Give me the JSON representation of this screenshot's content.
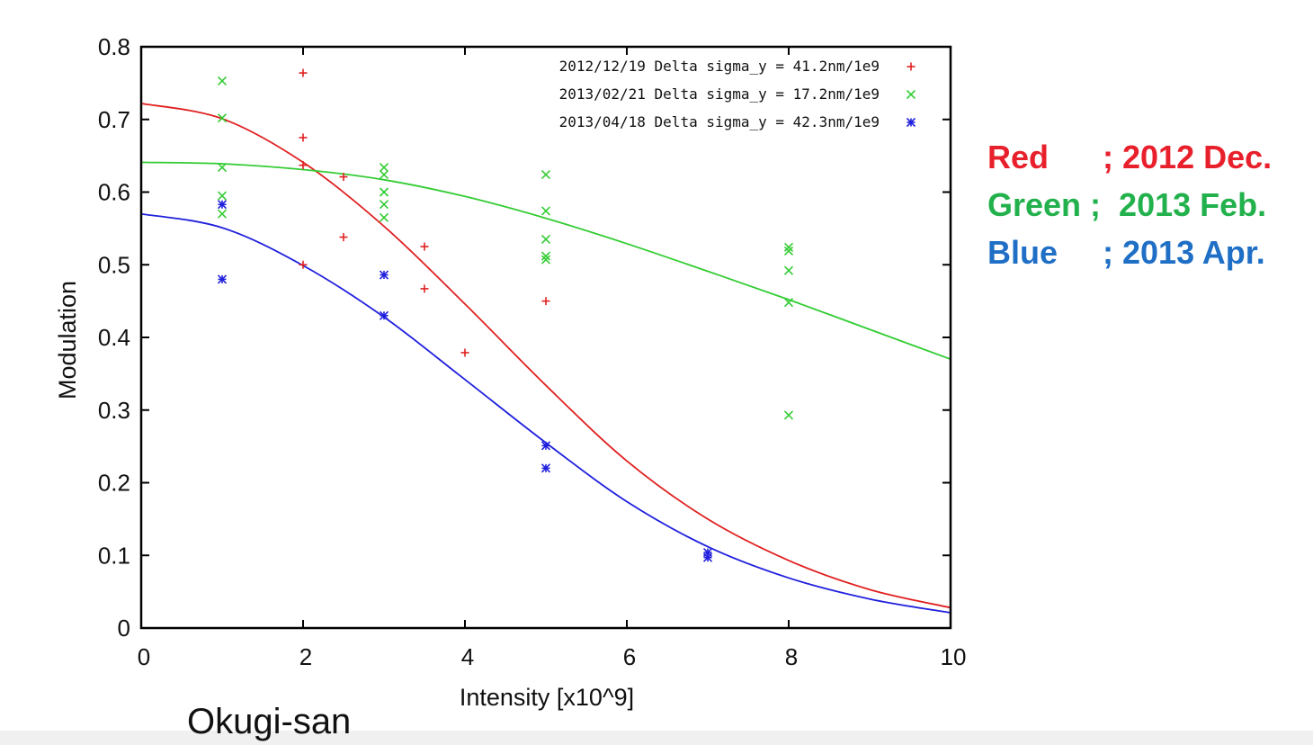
{
  "chart_data": {
    "type": "scatter",
    "title": "",
    "xlabel": "Intensity [x10^9]",
    "ylabel": "Modulation",
    "xlim": [
      0,
      10
    ],
    "ylim": [
      0,
      0.8
    ],
    "xticks": [
      "0",
      "2",
      "4",
      "6",
      "8",
      "10"
    ],
    "yticks": [
      "0",
      "0.1",
      "0.2",
      "0.3",
      "0.4",
      "0.5",
      "0.6",
      "0.7",
      "0.8"
    ],
    "grid": false,
    "legend_position": "top-right",
    "series": [
      {
        "name": "2012/12/19 Delta sigma_y = 41.2nm/1e9",
        "marker": "+",
        "color": "#e02020",
        "points": [
          [
            2,
            0.764
          ],
          [
            2,
            0.675
          ],
          [
            2,
            0.637
          ],
          [
            2,
            0.5
          ],
          [
            2.5,
            0.621
          ],
          [
            2.5,
            0.538
          ],
          [
            3.5,
            0.525
          ],
          [
            3.5,
            0.467
          ],
          [
            4,
            0.379
          ],
          [
            5,
            0.45
          ]
        ],
        "fit_curve": [
          [
            0,
            0.722
          ],
          [
            1,
            0.701
          ],
          [
            2,
            0.641
          ],
          [
            3,
            0.553
          ],
          [
            4,
            0.446
          ],
          [
            5,
            0.334
          ],
          [
            6,
            0.23
          ],
          [
            7,
            0.15
          ],
          [
            8,
            0.093
          ],
          [
            9,
            0.053
          ],
          [
            10,
            0.028
          ]
        ]
      },
      {
        "name": "2013/02/21 Delta sigma_y = 17.2nm/1e9",
        "marker": "x",
        "color": "#33cc33",
        "points": [
          [
            1,
            0.753
          ],
          [
            1,
            0.702
          ],
          [
            1,
            0.634
          ],
          [
            1,
            0.595
          ],
          [
            1,
            0.57
          ],
          [
            3,
            0.634
          ],
          [
            3,
            0.624
          ],
          [
            3,
            0.6
          ],
          [
            3,
            0.583
          ],
          [
            3,
            0.565
          ],
          [
            5,
            0.624
          ],
          [
            5,
            0.574
          ],
          [
            5,
            0.535
          ],
          [
            5,
            0.512
          ],
          [
            5,
            0.507
          ],
          [
            8,
            0.524
          ],
          [
            8,
            0.519
          ],
          [
            8,
            0.492
          ],
          [
            8,
            0.448
          ],
          [
            8,
            0.293
          ]
        ],
        "fit_curve": [
          [
            0,
            0.641
          ],
          [
            1,
            0.639
          ],
          [
            2,
            0.631
          ],
          [
            3,
            0.617
          ],
          [
            4,
            0.594
          ],
          [
            5,
            0.564
          ],
          [
            6,
            0.529
          ],
          [
            7,
            0.491
          ],
          [
            8,
            0.452
          ],
          [
            9,
            0.411
          ],
          [
            10,
            0.37
          ]
        ]
      },
      {
        "name": "2013/04/18 Delta sigma_y = 42.3nm/1e9",
        "marker": "*",
        "color": "#2020dd",
        "points": [
          [
            1,
            0.583
          ],
          [
            1,
            0.48
          ],
          [
            3,
            0.486
          ],
          [
            3,
            0.43
          ],
          [
            5,
            0.251
          ],
          [
            5,
            0.22
          ],
          [
            7,
            0.104
          ],
          [
            7,
            0.097
          ]
        ],
        "fit_curve": [
          [
            0,
            0.57
          ],
          [
            1,
            0.551
          ],
          [
            2,
            0.499
          ],
          [
            3,
            0.428
          ],
          [
            4,
            0.342
          ],
          [
            5,
            0.255
          ],
          [
            6,
            0.174
          ],
          [
            7,
            0.112
          ],
          [
            8,
            0.069
          ],
          [
            9,
            0.04
          ],
          [
            10,
            0.021
          ]
        ]
      }
    ]
  },
  "side_legend": [
    {
      "label": "Red",
      "sep": "      ; ",
      "value": "2012 Dec.",
      "color": "#e8202c"
    },
    {
      "label": "Green",
      "sep": " ;  ",
      "value": "2013 Feb.",
      "color": "#22b14c"
    },
    {
      "label": "Blue",
      "sep": "     ; ",
      "value": "2013 Apr.",
      "color": "#1f6fc6"
    }
  ],
  "credit": "Okugi-san"
}
